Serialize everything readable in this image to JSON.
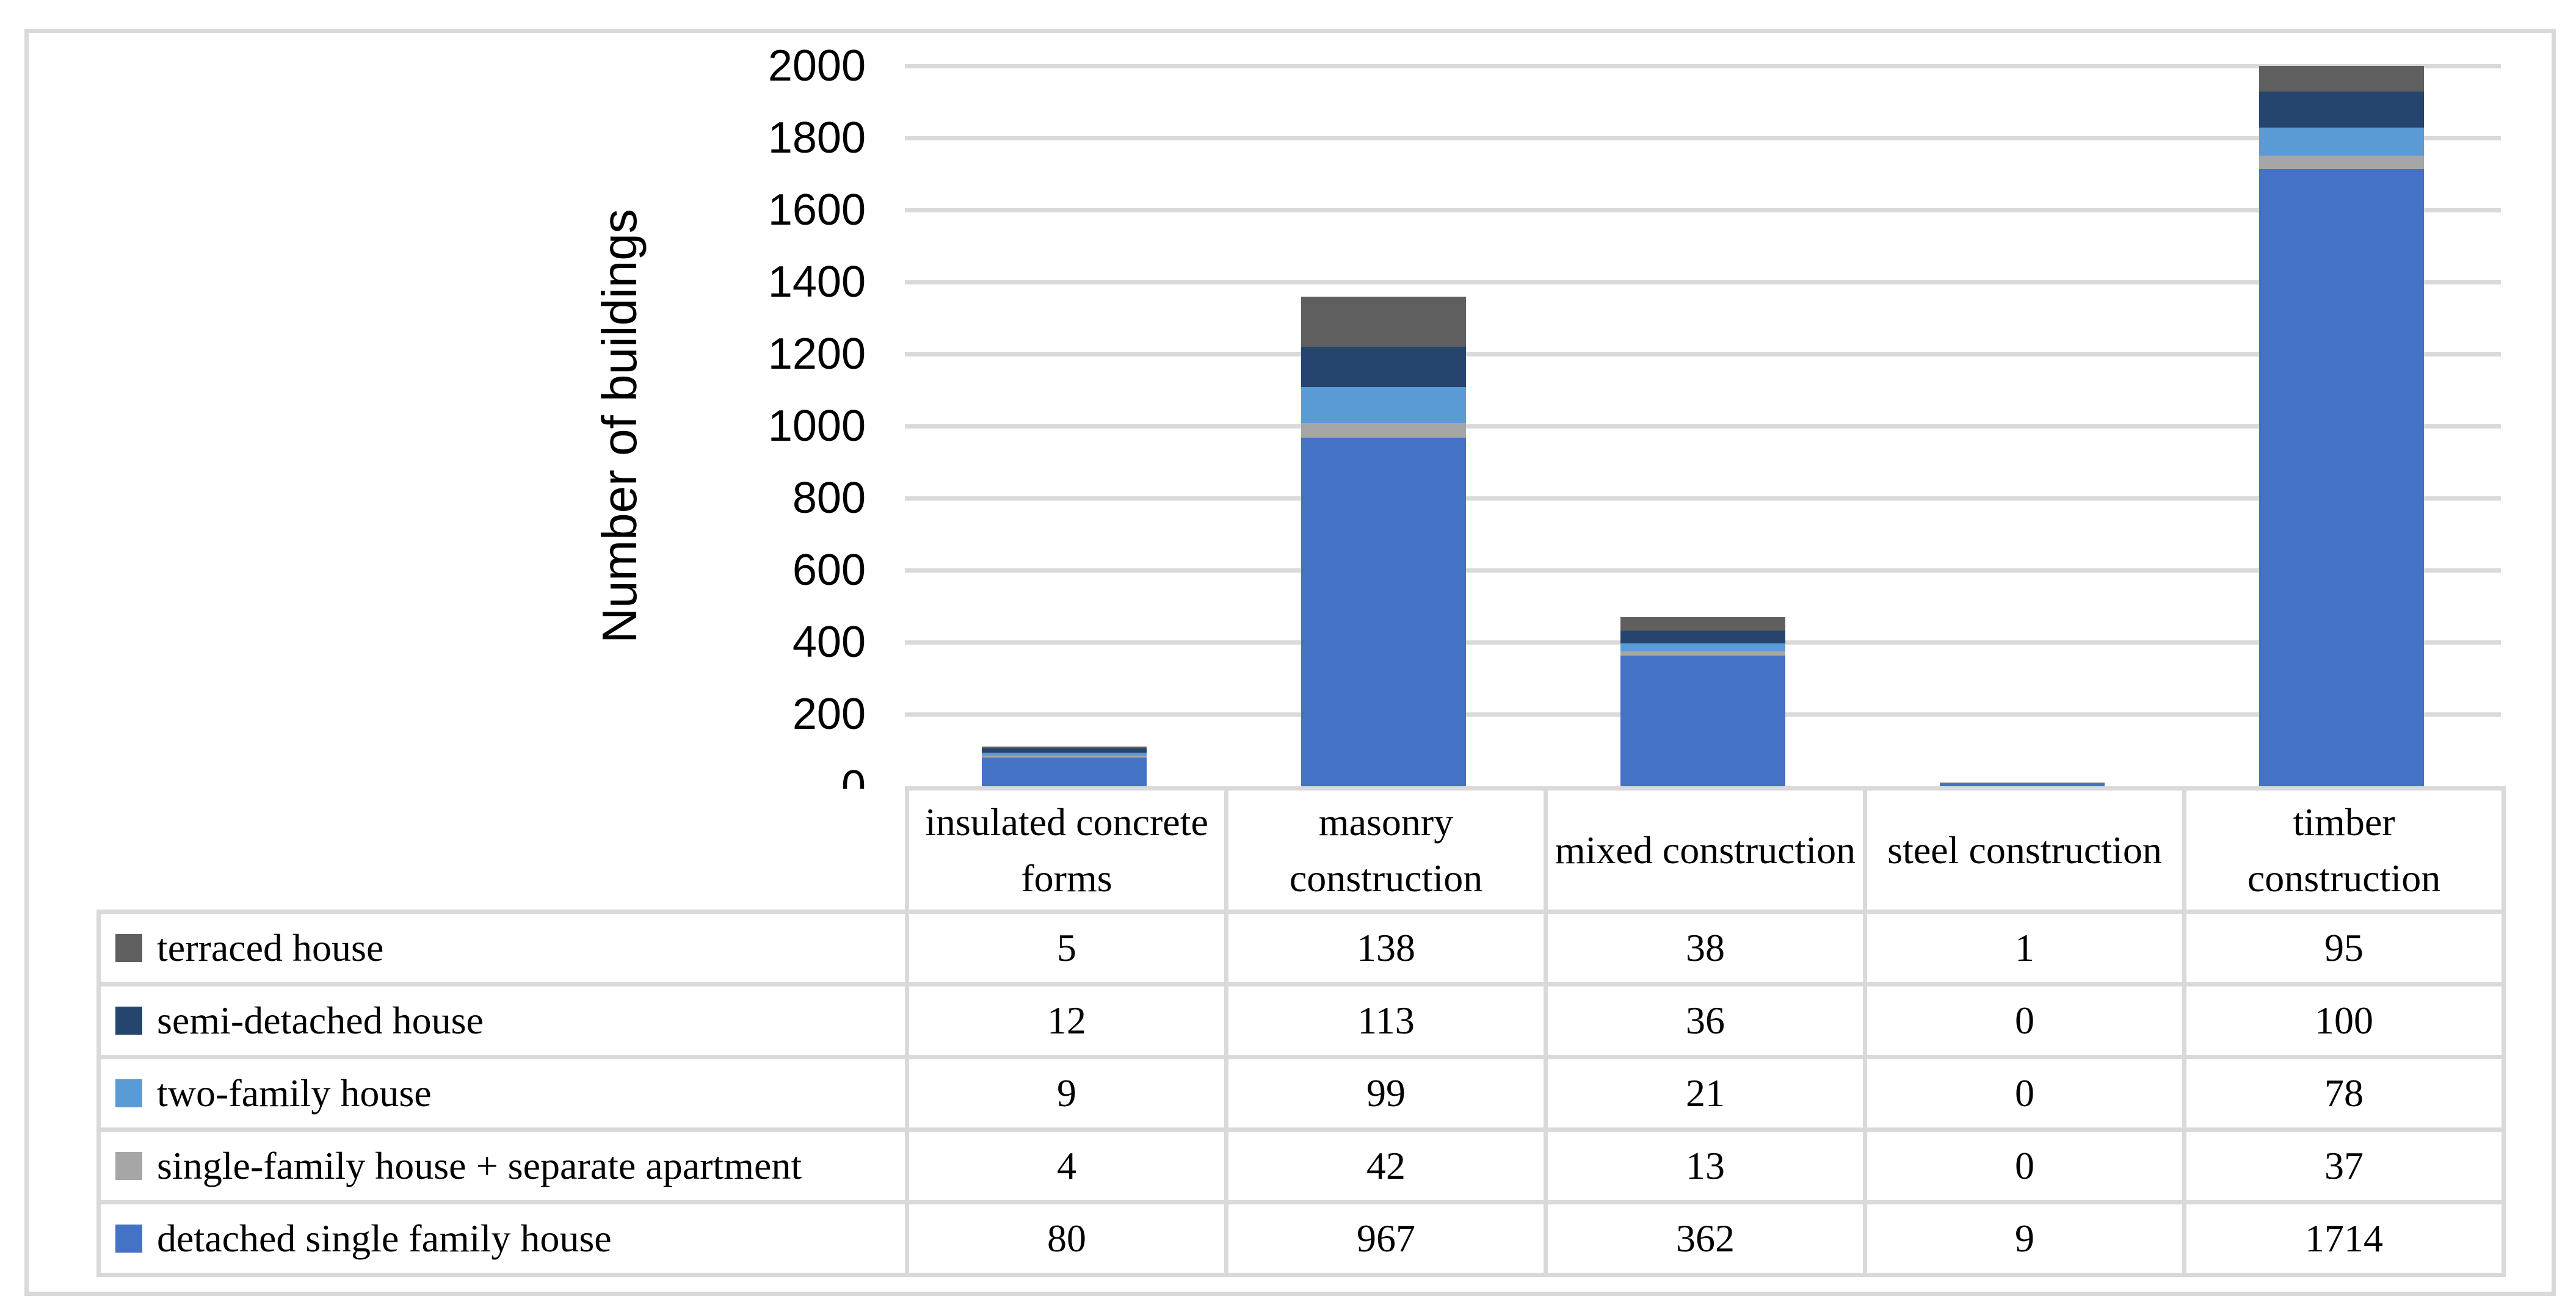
{
  "figure": {
    "background_color": "#FFFFFF",
    "border_color": "#D9D9D9",
    "gridline_color": "#D9D9D9"
  },
  "chart_data": {
    "type": "bar",
    "stacked": true,
    "title": "",
    "xlabel": "",
    "ylabel": "Number of buildings",
    "ylim": [
      0,
      2000
    ],
    "yticks": [
      0,
      200,
      400,
      600,
      800,
      1000,
      1200,
      1400,
      1600,
      1800,
      2000
    ],
    "grid": "horizontal",
    "legend_position": "table-left-column",
    "categories": [
      "insulated concrete forms",
      "masonry construction",
      "mixed construction",
      "steel construction",
      "timber construction"
    ],
    "series": [
      {
        "name": "terraced house",
        "color": "#5F5F5F",
        "values": [
          5,
          138,
          38,
          1,
          95
        ]
      },
      {
        "name": "semi-detached house",
        "color": "#25456F",
        "values": [
          12,
          113,
          36,
          0,
          100
        ]
      },
      {
        "name": "two-family house",
        "color": "#5B9BD5",
        "values": [
          9,
          99,
          21,
          0,
          78
        ]
      },
      {
        "name": "single-family house + separate apartment",
        "color": "#A6A6A6",
        "values": [
          4,
          42,
          13,
          0,
          37
        ]
      },
      {
        "name": "detached single family house",
        "color": "#4472C4",
        "values": [
          80,
          967,
          362,
          9,
          1714
        ]
      }
    ],
    "series_display_order": "top-of-stack-first"
  }
}
